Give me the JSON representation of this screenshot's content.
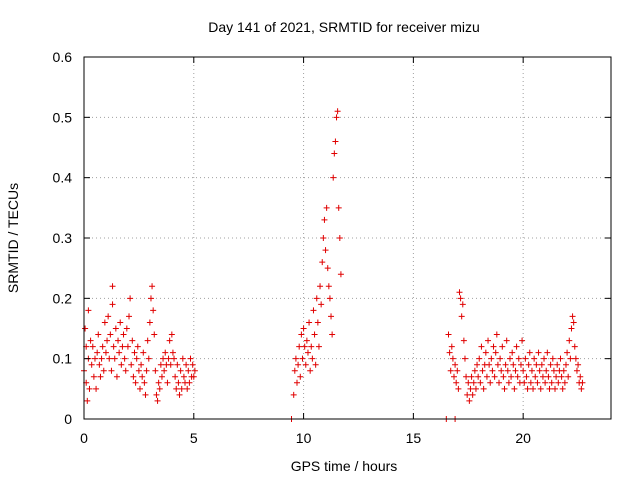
{
  "chart_data": {
    "type": "scatter",
    "title": "Day 141 of 2021, SRMTID for receiver mizu",
    "xlabel": "GPS time / hours",
    "ylabel": "SRMTID / TECUs",
    "xlim": [
      0,
      24
    ],
    "ylim": [
      0,
      0.6
    ],
    "xticks": [
      0,
      5,
      10,
      15,
      20
    ],
    "xtick_labels": [
      "0",
      "5",
      "10",
      "15",
      "20"
    ],
    "yticks": [
      0,
      0.1,
      0.2,
      0.3,
      0.4,
      0.5,
      0.6
    ],
    "ytick_labels": [
      "0",
      "0.1",
      "0.2",
      "0.3",
      "0.4",
      "0.5",
      "0.6"
    ],
    "grid": true,
    "marker": "+",
    "series": [
      {
        "name": "SRMTID",
        "color": "#e00000",
        "points": [
          [
            0.0,
            0.08
          ],
          [
            0.05,
            0.15
          ],
          [
            0.1,
            0.12
          ],
          [
            0.1,
            0.06
          ],
          [
            0.15,
            0.03
          ],
          [
            0.2,
            0.18
          ],
          [
            0.2,
            0.1
          ],
          [
            0.25,
            0.05
          ],
          [
            0.3,
            0.13
          ],
          [
            0.35,
            0.09
          ],
          [
            0.4,
            0.12
          ],
          [
            0.45,
            0.07
          ],
          [
            0.5,
            0.1
          ],
          [
            0.55,
            0.05
          ],
          [
            0.6,
            0.11
          ],
          [
            0.65,
            0.14
          ],
          [
            0.7,
            0.09
          ],
          [
            0.75,
            0.07
          ],
          [
            0.8,
            0.1
          ],
          [
            0.85,
            0.12
          ],
          [
            0.9,
            0.08
          ],
          [
            0.95,
            0.16
          ],
          [
            1.0,
            0.11
          ],
          [
            1.05,
            0.13
          ],
          [
            1.1,
            0.17
          ],
          [
            1.15,
            0.1
          ],
          [
            1.2,
            0.14
          ],
          [
            1.25,
            0.08
          ],
          [
            1.3,
            0.19
          ],
          [
            1.3,
            0.22
          ],
          [
            1.35,
            0.12
          ],
          [
            1.4,
            0.1
          ],
          [
            1.45,
            0.15
          ],
          [
            1.5,
            0.07
          ],
          [
            1.55,
            0.13
          ],
          [
            1.6,
            0.11
          ],
          [
            1.65,
            0.16
          ],
          [
            1.7,
            0.09
          ],
          [
            1.75,
            0.12
          ],
          [
            1.8,
            0.14
          ],
          [
            1.85,
            0.1
          ],
          [
            1.9,
            0.08
          ],
          [
            1.95,
            0.15
          ],
          [
            2.0,
            0.12
          ],
          [
            2.05,
            0.17
          ],
          [
            2.1,
            0.2
          ],
          [
            2.15,
            0.09
          ],
          [
            2.2,
            0.13
          ],
          [
            2.25,
            0.07
          ],
          [
            2.3,
            0.11
          ],
          [
            2.35,
            0.06
          ],
          [
            2.4,
            0.1
          ],
          [
            2.45,
            0.12
          ],
          [
            2.5,
            0.08
          ],
          [
            2.55,
            0.05
          ],
          [
            2.6,
            0.09
          ],
          [
            2.65,
            0.07
          ],
          [
            2.7,
            0.11
          ],
          [
            2.75,
            0.06
          ],
          [
            2.8,
            0.04
          ],
          [
            2.85,
            0.08
          ],
          [
            2.9,
            0.13
          ],
          [
            2.95,
            0.1
          ],
          [
            3.0,
            0.16
          ],
          [
            3.05,
            0.2
          ],
          [
            3.1,
            0.22
          ],
          [
            3.15,
            0.18
          ],
          [
            3.2,
            0.14
          ],
          [
            3.25,
            0.08
          ],
          [
            3.3,
            0.04
          ],
          [
            3.35,
            0.03
          ],
          [
            3.4,
            0.06
          ],
          [
            3.45,
            0.05
          ],
          [
            3.5,
            0.09
          ],
          [
            3.55,
            0.07
          ],
          [
            3.6,
            0.1
          ],
          [
            3.65,
            0.08
          ],
          [
            3.7,
            0.11
          ],
          [
            3.75,
            0.09
          ],
          [
            3.8,
            0.06
          ],
          [
            3.85,
            0.1
          ],
          [
            3.9,
            0.13
          ],
          [
            3.95,
            0.09
          ],
          [
            4.0,
            0.14
          ],
          [
            4.05,
            0.11
          ],
          [
            4.1,
            0.1
          ],
          [
            4.15,
            0.07
          ],
          [
            4.2,
            0.05
          ],
          [
            4.25,
            0.09
          ],
          [
            4.3,
            0.06
          ],
          [
            4.35,
            0.04
          ],
          [
            4.4,
            0.08
          ],
          [
            4.45,
            0.05
          ],
          [
            4.5,
            0.1
          ],
          [
            4.55,
            0.07
          ],
          [
            4.6,
            0.06
          ],
          [
            4.65,
            0.09
          ],
          [
            4.7,
            0.05
          ],
          [
            4.75,
            0.08
          ],
          [
            4.8,
            0.06
          ],
          [
            4.85,
            0.1
          ],
          [
            4.9,
            0.07
          ],
          [
            4.95,
            0.09
          ],
          [
            5.0,
            0.07
          ],
          [
            5.05,
            0.08
          ],
          [
            9.45,
            0.0
          ],
          [
            9.55,
            0.04
          ],
          [
            9.6,
            0.08
          ],
          [
            9.65,
            0.1
          ],
          [
            9.7,
            0.06
          ],
          [
            9.75,
            0.09
          ],
          [
            9.8,
            0.12
          ],
          [
            9.85,
            0.07
          ],
          [
            9.9,
            0.14
          ],
          [
            9.95,
            0.1
          ],
          [
            10.0,
            0.15
          ],
          [
            10.05,
            0.12
          ],
          [
            10.1,
            0.09
          ],
          [
            10.15,
            0.13
          ],
          [
            10.2,
            0.11
          ],
          [
            10.25,
            0.16
          ],
          [
            10.3,
            0.08
          ],
          [
            10.35,
            0.12
          ],
          [
            10.4,
            0.1
          ],
          [
            10.45,
            0.18
          ],
          [
            10.5,
            0.14
          ],
          [
            10.55,
            0.09
          ],
          [
            10.6,
            0.2
          ],
          [
            10.65,
            0.16
          ],
          [
            10.7,
            0.12
          ],
          [
            10.75,
            0.22
          ],
          [
            10.8,
            0.19
          ],
          [
            10.85,
            0.26
          ],
          [
            10.9,
            0.3
          ],
          [
            10.95,
            0.33
          ],
          [
            11.0,
            0.28
          ],
          [
            11.05,
            0.35
          ],
          [
            11.1,
            0.25
          ],
          [
            11.15,
            0.22
          ],
          [
            11.2,
            0.2
          ],
          [
            11.25,
            0.17
          ],
          [
            11.3,
            0.14
          ],
          [
            11.35,
            0.4
          ],
          [
            11.4,
            0.44
          ],
          [
            11.45,
            0.46
          ],
          [
            11.5,
            0.5
          ],
          [
            11.55,
            0.51
          ],
          [
            11.6,
            0.35
          ],
          [
            11.65,
            0.3
          ],
          [
            11.7,
            0.24
          ],
          [
            16.5,
            0.0
          ],
          [
            16.9,
            0.0
          ],
          [
            16.6,
            0.14
          ],
          [
            16.65,
            0.11
          ],
          [
            16.7,
            0.08
          ],
          [
            16.75,
            0.12
          ],
          [
            16.8,
            0.1
          ],
          [
            16.85,
            0.07
          ],
          [
            16.9,
            0.09
          ],
          [
            16.95,
            0.06
          ],
          [
            17.0,
            0.08
          ],
          [
            17.05,
            0.05
          ],
          [
            17.1,
            0.21
          ],
          [
            17.15,
            0.2
          ],
          [
            17.2,
            0.17
          ],
          [
            17.25,
            0.19
          ],
          [
            17.3,
            0.13
          ],
          [
            17.35,
            0.1
          ],
          [
            17.4,
            0.07
          ],
          [
            17.45,
            0.04
          ],
          [
            17.5,
            0.06
          ],
          [
            17.55,
            0.03
          ],
          [
            17.6,
            0.05
          ],
          [
            17.65,
            0.07
          ],
          [
            17.7,
            0.04
          ],
          [
            17.75,
            0.06
          ],
          [
            17.8,
            0.08
          ],
          [
            17.85,
            0.05
          ],
          [
            17.9,
            0.09
          ],
          [
            17.95,
            0.07
          ],
          [
            18.0,
            0.1
          ],
          [
            18.05,
            0.06
          ],
          [
            18.1,
            0.12
          ],
          [
            18.15,
            0.08
          ],
          [
            18.2,
            0.05
          ],
          [
            18.25,
            0.09
          ],
          [
            18.3,
            0.11
          ],
          [
            18.35,
            0.07
          ],
          [
            18.4,
            0.13
          ],
          [
            18.45,
            0.09
          ],
          [
            18.5,
            0.06
          ],
          [
            18.55,
            0.1
          ],
          [
            18.6,
            0.08
          ],
          [
            18.65,
            0.12
          ],
          [
            18.7,
            0.07
          ],
          [
            18.75,
            0.11
          ],
          [
            18.8,
            0.14
          ],
          [
            18.85,
            0.09
          ],
          [
            18.9,
            0.06
          ],
          [
            18.95,
            0.1
          ],
          [
            19.0,
            0.08
          ],
          [
            19.05,
            0.12
          ],
          [
            19.1,
            0.07
          ],
          [
            19.15,
            0.05
          ],
          [
            19.2,
            0.09
          ],
          [
            19.25,
            0.13
          ],
          [
            19.3,
            0.08
          ],
          [
            19.35,
            0.06
          ],
          [
            19.4,
            0.1
          ],
          [
            19.45,
            0.07
          ],
          [
            19.5,
            0.11
          ],
          [
            19.55,
            0.09
          ],
          [
            19.6,
            0.05
          ],
          [
            19.65,
            0.08
          ],
          [
            19.7,
            0.12
          ],
          [
            19.75,
            0.07
          ],
          [
            19.8,
            0.1
          ],
          [
            19.85,
            0.06
          ],
          [
            19.9,
            0.09
          ],
          [
            19.95,
            0.13
          ],
          [
            20.0,
            0.08
          ],
          [
            20.05,
            0.06
          ],
          [
            20.1,
            0.1
          ],
          [
            20.15,
            0.07
          ],
          [
            20.2,
            0.05
          ],
          [
            20.25,
            0.09
          ],
          [
            20.3,
            0.11
          ],
          [
            20.35,
            0.06
          ],
          [
            20.4,
            0.08
          ],
          [
            20.45,
            0.05
          ],
          [
            20.5,
            0.1
          ],
          [
            20.55,
            0.07
          ],
          [
            20.6,
            0.09
          ],
          [
            20.65,
            0.06
          ],
          [
            20.7,
            0.11
          ],
          [
            20.75,
            0.08
          ],
          [
            20.8,
            0.05
          ],
          [
            20.85,
            0.09
          ],
          [
            20.9,
            0.07
          ],
          [
            20.95,
            0.1
          ],
          [
            21.0,
            0.06
          ],
          [
            21.05,
            0.08
          ],
          [
            21.1,
            0.11
          ],
          [
            21.15,
            0.07
          ],
          [
            21.2,
            0.05
          ],
          [
            21.25,
            0.09
          ],
          [
            21.3,
            0.06
          ],
          [
            21.35,
            0.1
          ],
          [
            21.4,
            0.08
          ],
          [
            21.45,
            0.05
          ],
          [
            21.5,
            0.07
          ],
          [
            21.55,
            0.09
          ],
          [
            21.6,
            0.06
          ],
          [
            21.65,
            0.08
          ],
          [
            21.7,
            0.1
          ],
          [
            21.75,
            0.07
          ],
          [
            21.8,
            0.05
          ],
          [
            21.85,
            0.08
          ],
          [
            21.9,
            0.06
          ],
          [
            21.95,
            0.09
          ],
          [
            22.0,
            0.11
          ],
          [
            22.05,
            0.07
          ],
          [
            22.1,
            0.13
          ],
          [
            22.15,
            0.1
          ],
          [
            22.2,
            0.15
          ],
          [
            22.25,
            0.17
          ],
          [
            22.3,
            0.16
          ],
          [
            22.35,
            0.12
          ],
          [
            22.4,
            0.1
          ],
          [
            22.45,
            0.08
          ],
          [
            22.5,
            0.09
          ],
          [
            22.55,
            0.06
          ],
          [
            22.6,
            0.07
          ],
          [
            22.65,
            0.05
          ],
          [
            22.7,
            0.06
          ]
        ]
      }
    ]
  }
}
